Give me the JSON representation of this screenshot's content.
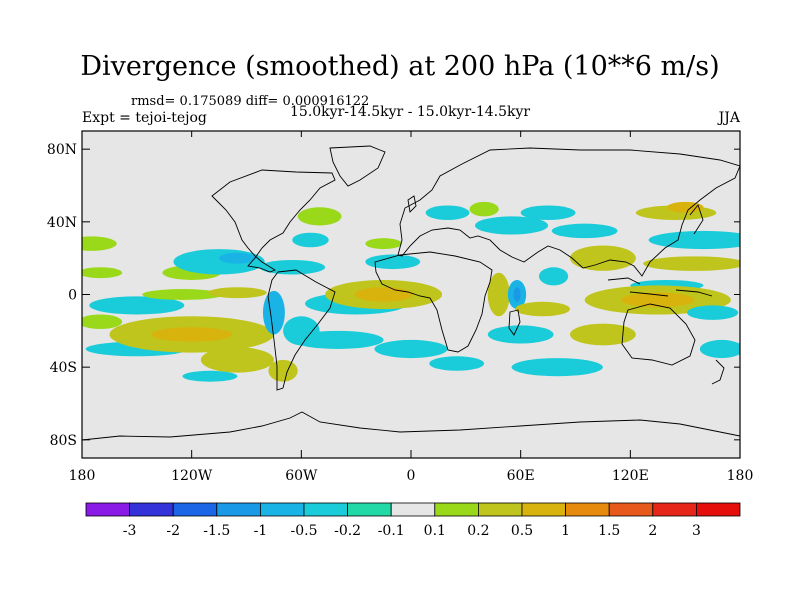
{
  "chart_data": {
    "type": "heatmap",
    "title": "Divergence (smoothed) at 200 hPa (10**6 m/s)",
    "stats_text": "rmsd= 0.175089 diff= 0.000916122",
    "left_label": "Expt = tejoi-tejog",
    "center_label": "15.0kyr-14.5kyr - 15.0kyr-14.5kyr",
    "right_label": "JJA",
    "x_range": [
      -180,
      180
    ],
    "y_range": [
      -90,
      90
    ],
    "x_ticks": [
      {
        "value": -180,
        "label": "180"
      },
      {
        "value": -120,
        "label": "120W"
      },
      {
        "value": -60,
        "label": "60W"
      },
      {
        "value": 0,
        "label": "0"
      },
      {
        "value": 60,
        "label": "60E"
      },
      {
        "value": 120,
        "label": "120E"
      },
      {
        "value": 180,
        "label": "180"
      }
    ],
    "y_ticks": [
      {
        "value": 80,
        "label": "80N"
      },
      {
        "value": 40,
        "label": "40N"
      },
      {
        "value": 0,
        "label": "0"
      },
      {
        "value": -40,
        "label": "40S"
      },
      {
        "value": -80,
        "label": "80S"
      }
    ],
    "levels": [
      "-3",
      "-2",
      "-1.5",
      "-1",
      "-0.5",
      "-0.2",
      "-0.1",
      "0.1",
      "0.2",
      "0.5",
      "1",
      "1.5",
      "2",
      "3"
    ],
    "colors": [
      "#8a1be6",
      "#3333d9",
      "#1a66e6",
      "#1a99e6",
      "#1ab3e6",
      "#1accd9",
      "#21d9a6",
      "#e6e6e6",
      "#9ad91a",
      "#bfc51c",
      "#d9b30d",
      "#e68a0d",
      "#e6591a",
      "#e62619",
      "#e60d0d"
    ],
    "fields": [
      {
        "lon": -175,
        "lat": 28,
        "rx": 14,
        "ry": 4,
        "c": 8
      },
      {
        "lon": -170,
        "lat": 12,
        "rx": 12,
        "ry": 3,
        "c": 8
      },
      {
        "lon": -170,
        "lat": -15,
        "rx": 12,
        "ry": 4,
        "c": 8
      },
      {
        "lon": -150,
        "lat": -6,
        "rx": 26,
        "ry": 5,
        "c": 5
      },
      {
        "lon": -120,
        "lat": 12,
        "rx": 16,
        "ry": 4,
        "c": 8
      },
      {
        "lon": -150,
        "lat": -30,
        "rx": 28,
        "ry": 4,
        "c": 5
      },
      {
        "lon": -120,
        "lat": -22,
        "rx": 45,
        "ry": 10,
        "c": 9
      },
      {
        "lon": -120,
        "lat": -22,
        "rx": 22,
        "ry": 4,
        "c": 10
      },
      {
        "lon": -95,
        "lat": -36,
        "rx": 20,
        "ry": 7,
        "c": 9
      },
      {
        "lon": -125,
        "lat": 0,
        "rx": 22,
        "ry": 3,
        "c": 8
      },
      {
        "lon": -105,
        "lat": 18,
        "rx": 25,
        "ry": 7,
        "c": 5
      },
      {
        "lon": -95,
        "lat": 20,
        "rx": 10,
        "ry": 3,
        "c": 4
      },
      {
        "lon": -65,
        "lat": 15,
        "rx": 18,
        "ry": 4,
        "c": 5
      },
      {
        "lon": -95,
        "lat": 1,
        "rx": 16,
        "ry": 3,
        "c": 9
      },
      {
        "lon": -60,
        "lat": -20,
        "rx": 10,
        "ry": 8,
        "c": 5
      },
      {
        "lon": -75,
        "lat": -10,
        "rx": 6,
        "ry": 12,
        "c": 4
      },
      {
        "lon": -70,
        "lat": -42,
        "rx": 8,
        "ry": 6,
        "c": 9
      },
      {
        "lon": -30,
        "lat": -5,
        "rx": 28,
        "ry": 6,
        "c": 5
      },
      {
        "lon": -40,
        "lat": -25,
        "rx": 25,
        "ry": 5,
        "c": 5
      },
      {
        "lon": -15,
        "lat": 0,
        "rx": 32,
        "ry": 8,
        "c": 9
      },
      {
        "lon": -15,
        "lat": 0,
        "rx": 16,
        "ry": 4,
        "c": 10
      },
      {
        "lon": -50,
        "lat": 43,
        "rx": 12,
        "ry": 5,
        "c": 8
      },
      {
        "lon": -55,
        "lat": 30,
        "rx": 10,
        "ry": 4,
        "c": 5
      },
      {
        "lon": -10,
        "lat": 18,
        "rx": 15,
        "ry": 4,
        "c": 5
      },
      {
        "lon": -15,
        "lat": 28,
        "rx": 10,
        "ry": 3,
        "c": 8
      },
      {
        "lon": 0,
        "lat": -30,
        "rx": 20,
        "ry": 5,
        "c": 5
      },
      {
        "lon": 20,
        "lat": 45,
        "rx": 12,
        "ry": 4,
        "c": 5
      },
      {
        "lon": 40,
        "lat": 47,
        "rx": 8,
        "ry": 4,
        "c": 8
      },
      {
        "lon": 55,
        "lat": 38,
        "rx": 20,
        "ry": 5,
        "c": 5
      },
      {
        "lon": 75,
        "lat": 45,
        "rx": 15,
        "ry": 4,
        "c": 5
      },
      {
        "lon": 95,
        "lat": 35,
        "rx": 18,
        "ry": 4,
        "c": 5
      },
      {
        "lon": 105,
        "lat": 20,
        "rx": 18,
        "ry": 7,
        "c": 9
      },
      {
        "lon": 145,
        "lat": 45,
        "rx": 22,
        "ry": 4,
        "c": 9
      },
      {
        "lon": 150,
        "lat": 48,
        "rx": 10,
        "ry": 3,
        "c": 10
      },
      {
        "lon": 160,
        "lat": 30,
        "rx": 30,
        "ry": 5,
        "c": 5
      },
      {
        "lon": 155,
        "lat": 17,
        "rx": 28,
        "ry": 4,
        "c": 9
      },
      {
        "lon": 140,
        "lat": 5,
        "rx": 20,
        "ry": 3,
        "c": 5
      },
      {
        "lon": 135,
        "lat": -3,
        "rx": 40,
        "ry": 8,
        "c": 9
      },
      {
        "lon": 135,
        "lat": -3,
        "rx": 20,
        "ry": 4,
        "c": 10
      },
      {
        "lon": 48,
        "lat": 0,
        "rx": 6,
        "ry": 12,
        "c": 9
      },
      {
        "lon": 58,
        "lat": 0,
        "rx": 5,
        "ry": 8,
        "c": 4
      },
      {
        "lon": 58,
        "lat": 0,
        "rx": 2,
        "ry": 4,
        "c": 3
      },
      {
        "lon": 78,
        "lat": 10,
        "rx": 8,
        "ry": 5,
        "c": 5
      },
      {
        "lon": 72,
        "lat": -8,
        "rx": 15,
        "ry": 4,
        "c": 9
      },
      {
        "lon": 60,
        "lat": -22,
        "rx": 18,
        "ry": 5,
        "c": 5
      },
      {
        "lon": 105,
        "lat": -22,
        "rx": 18,
        "ry": 6,
        "c": 9
      },
      {
        "lon": 80,
        "lat": -40,
        "rx": 25,
        "ry": 5,
        "c": 5
      },
      {
        "lon": 165,
        "lat": -10,
        "rx": 14,
        "ry": 4,
        "c": 5
      },
      {
        "lon": 170,
        "lat": -30,
        "rx": 12,
        "ry": 5,
        "c": 5
      },
      {
        "lon": 25,
        "lat": -38,
        "rx": 15,
        "ry": 4,
        "c": 5
      },
      {
        "lon": -110,
        "lat": -45,
        "rx": 15,
        "ry": 3,
        "c": 5
      }
    ]
  }
}
